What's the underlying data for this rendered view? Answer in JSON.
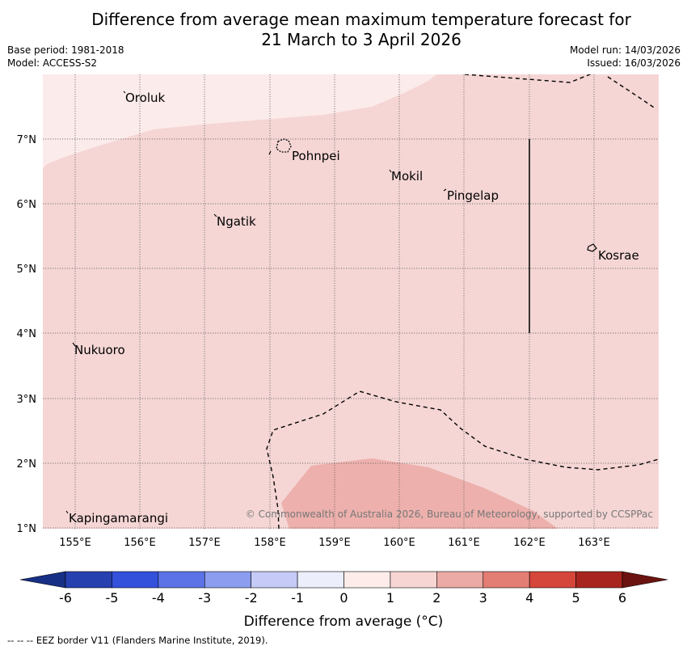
{
  "title": {
    "line1": "Difference from average mean maximum temperature forecast for",
    "line2": "21 March to 3 April 2026"
  },
  "meta": {
    "base_period": "Base period: 1981-2018",
    "model": "Model: ACCESS-S2",
    "model_run": "Model run: 14/03/2026",
    "issued": "Issued: 16/03/2026"
  },
  "map": {
    "latitude_labels": [
      "7°N",
      "6°N",
      "5°N",
      "4°N",
      "3°N",
      "2°N",
      "1°N"
    ],
    "longitude_labels": [
      "155°E",
      "156°E",
      "157°E",
      "158°E",
      "159°E",
      "160°E",
      "161°E",
      "162°E",
      "163°E"
    ],
    "places": [
      {
        "name": "Oroluk"
      },
      {
        "name": "Pohnpei"
      },
      {
        "name": "Mokil"
      },
      {
        "name": "Pingelap"
      },
      {
        "name": "Ngatik"
      },
      {
        "name": "Kosrae"
      },
      {
        "name": "Nukuoro"
      },
      {
        "name": "Kapingamarangi"
      }
    ],
    "copyright": "© Commonwealth of Australia 2026, Bureau of Meteorology, supported by CCSPPac",
    "colors": {
      "band_0_1": "#fbebea",
      "band_1_2": "#f5d6d5",
      "band_2_3": "#edb0ac"
    }
  },
  "colorbar": {
    "label": "Difference from average (°C)",
    "ticks": [
      "-6",
      "-5",
      "-4",
      "-3",
      "-2",
      "-1",
      "0",
      "1",
      "2",
      "3",
      "4",
      "5",
      "6"
    ],
    "colors": [
      "#172f85",
      "#2740b0",
      "#3451dc",
      "#5b73e6",
      "#8c9cee",
      "#c5cbf6",
      "#eceefb",
      "#fdecea",
      "#f6d5d3",
      "#ebaaa5",
      "#e37e75",
      "#d5463b",
      "#a8251f",
      "#6b1310"
    ]
  },
  "footnote": "--  --  -- EEZ border V11 (Flanders Marine Institute, 2019)."
}
